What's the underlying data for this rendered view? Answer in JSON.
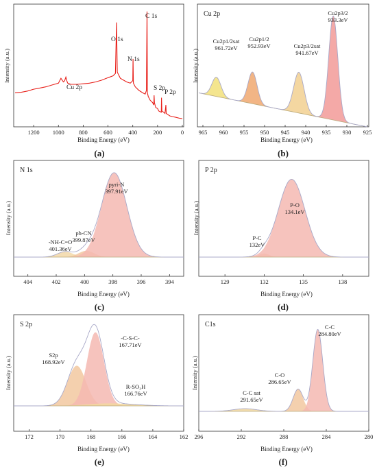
{
  "figure": {
    "panels": [
      {
        "letter": "(a)"
      },
      {
        "letter": "(b)"
      },
      {
        "letter": "(c)"
      },
      {
        "letter": "(d)"
      },
      {
        "letter": "(e)"
      },
      {
        "letter": "(f)"
      }
    ]
  },
  "chart_data": [
    {
      "panel": "(a)",
      "type": "line",
      "title": "",
      "xlabel": "Binding Energy (eV)",
      "ylabel": "Intensity (a.u.)",
      "xlim": [
        1350,
        0
      ],
      "x_reversed": true,
      "ylim": [
        0,
        100
      ],
      "xticks": [
        1200,
        1000,
        800,
        600,
        400,
        200,
        0
      ],
      "yticks_shown": false,
      "colors": {
        "line": "#e8201a"
      },
      "series": [
        {
          "x": [
            1350,
            1300,
            1250,
            1200,
            1150,
            1100,
            1050,
            1000,
            980,
            960,
            950,
            940,
            933,
            925,
            900,
            850,
            800,
            750,
            700,
            650,
            600,
            560,
            540,
            531,
            525,
            500,
            450,
            420,
            400,
            398,
            395,
            380,
            350,
            320,
            300,
            290,
            285,
            282,
            275,
            260,
            240,
            230,
            228,
            225,
            215,
            200,
            190,
            170,
            168,
            165,
            150,
            140,
            133,
            130,
            115,
            100,
            80,
            60,
            40,
            20,
            0
          ],
          "y": [
            28,
            28.5,
            29.5,
            31,
            32,
            33,
            34.5,
            36,
            40,
            37,
            38,
            41,
            38,
            36,
            35,
            35,
            35.5,
            36,
            37,
            38.5,
            40.5,
            42,
            44,
            86,
            45,
            40,
            37,
            36,
            38,
            56,
            36,
            33,
            30,
            28,
            27,
            30,
            95,
            28,
            25,
            22,
            20,
            18,
            26,
            20,
            16,
            15,
            13,
            12,
            24,
            13,
            12,
            11,
            18,
            11,
            10,
            9,
            8.5,
            8,
            7.5,
            7,
            6.8
          ]
        }
      ],
      "annotations": [
        "Cu 2p",
        "O 1s",
        "N 1s",
        "C 1s",
        "S 2p",
        "P 2p"
      ]
    },
    {
      "panel": "(b)",
      "type": "area",
      "title": "Cu 2p",
      "xlabel": "Binding Energy (eV)",
      "ylabel": "Intensity (a.u.)",
      "xlim": [
        966,
        925
      ],
      "x_reversed": true,
      "ylim": [
        0,
        100
      ],
      "xticks": [
        965,
        960,
        955,
        950,
        945,
        940,
        935,
        930,
        925
      ],
      "yticks_shown": false,
      "background": {
        "x": [
          966,
          925
        ],
        "y": [
          30,
          0
        ]
      },
      "peaks": [
        {
          "label": "Cu2p1/2sat",
          "value": "961.72eV",
          "center": 961.72,
          "height": 17,
          "fwhm": 2.6,
          "color": "#f2e07a"
        },
        {
          "label": "Cu2p1/2",
          "value": "952.93eV",
          "center": 952.93,
          "height": 28,
          "fwhm": 2.6,
          "color": "#f0a870"
        },
        {
          "label": "Cu2p3/2sat",
          "value": "941.67eV",
          "center": 941.67,
          "height": 36,
          "fwhm": 3.0,
          "color": "#f2d090"
        },
        {
          "label": "Cu2p3/2",
          "value": "933.3eV",
          "center": 933.3,
          "height": 92,
          "fwhm": 2.6,
          "color": "#f29a98"
        }
      ]
    },
    {
      "panel": "(c)",
      "type": "area",
      "title": "N 1s",
      "xlabel": "Binding Energy (eV)",
      "ylabel": "Intensity (a.u.)",
      "xlim": [
        405,
        393
      ],
      "x_reversed": true,
      "ylim": [
        0,
        100
      ],
      "xticks": [
        404,
        402,
        400,
        398,
        396,
        394
      ],
      "yticks_shown": false,
      "background": {
        "x": [
          405,
          393
        ],
        "y": [
          0,
          0
        ]
      },
      "peaks": [
        {
          "label": "-NH-C=O",
          "value": "401.36eV",
          "center": 401.36,
          "height": 6,
          "fwhm": 1.3,
          "color": "#f2d8a8"
        },
        {
          "label": "ph-CN",
          "value": "399.87eV",
          "center": 399.87,
          "height": 7,
          "fwhm": 1.3,
          "color": "#f2c8a0"
        },
        {
          "label": "pyri-N",
          "value": "397.91eV",
          "center": 397.91,
          "height": 94,
          "fwhm": 2.1,
          "color": "#f5b8b2"
        }
      ]
    },
    {
      "panel": "(d)",
      "type": "area",
      "title": "P 2p",
      "xlabel": "Binding Energy (eV)",
      "ylabel": "Intensity (a.u.)",
      "xlim": [
        127,
        140
      ],
      "x_reversed": false,
      "ylim": [
        0,
        100
      ],
      "xticks": [
        129,
        132,
        135,
        138
      ],
      "yticks_shown": false,
      "background": {
        "x": [
          127,
          140
        ],
        "y": [
          0,
          0
        ]
      },
      "peaks": [
        {
          "label": "P-C",
          "value": "132eV",
          "center": 132,
          "height": 4,
          "fwhm": 0.9,
          "color": "#f2c8a0"
        },
        {
          "label": "P-O",
          "value": "134.1eV",
          "center": 134.1,
          "height": 88,
          "fwhm": 2.4,
          "color": "#f5b8b2"
        }
      ]
    },
    {
      "panel": "(e)",
      "type": "area",
      "title": "S 2p",
      "xlabel": "Binding Energy (eV)",
      "ylabel": "Intensity (a.u.)",
      "xlim": [
        173,
        162
      ],
      "x_reversed": true,
      "ylim": [
        0,
        100
      ],
      "xticks": [
        172,
        170,
        168,
        166,
        164,
        162
      ],
      "yticks_shown": false,
      "background": {
        "x": [
          173,
          162
        ],
        "y": [
          0,
          0
        ]
      },
      "peaks": [
        {
          "label": "S2p",
          "value": "168.92eV",
          "center": 168.92,
          "height": 48,
          "fwhm": 1.4,
          "color": "#f2c8a0"
        },
        {
          "label": "-C-S-C-",
          "value": "167.71eV",
          "center": 167.71,
          "height": 88,
          "fwhm": 1.3,
          "color": "#f5b8b2"
        },
        {
          "label": "R-SO₃H",
          "value": "166.76eV",
          "center": 166.76,
          "height": 3,
          "fwhm": 3.5,
          "color": "#f2d8a0"
        }
      ]
    },
    {
      "panel": "(f)",
      "type": "area",
      "title": "C1s",
      "xlabel": "Binding Energy (eV)",
      "ylabel": "Intensity (a.u.)",
      "xlim": [
        296,
        280
      ],
      "x_reversed": true,
      "ylim": [
        0,
        100
      ],
      "xticks": [
        296,
        292,
        288,
        284,
        280
      ],
      "yticks_shown": false,
      "background": {
        "x": [
          296,
          280
        ],
        "y": [
          0,
          0
        ]
      },
      "peaks": [
        {
          "label": "C-C sat",
          "value": "291.65eV",
          "center": 291.65,
          "height": 3,
          "fwhm": 2.6,
          "color": "#f2d8a0"
        },
        {
          "label": "C-O",
          "value": "286.65eV",
          "center": 286.65,
          "height": 25,
          "fwhm": 1.1,
          "color": "#f2c8a0"
        },
        {
          "label": "C-C",
          "value": "284.80eV",
          "center": 284.8,
          "height": 92,
          "fwhm": 1.1,
          "color": "#f5b8b2"
        }
      ]
    }
  ]
}
